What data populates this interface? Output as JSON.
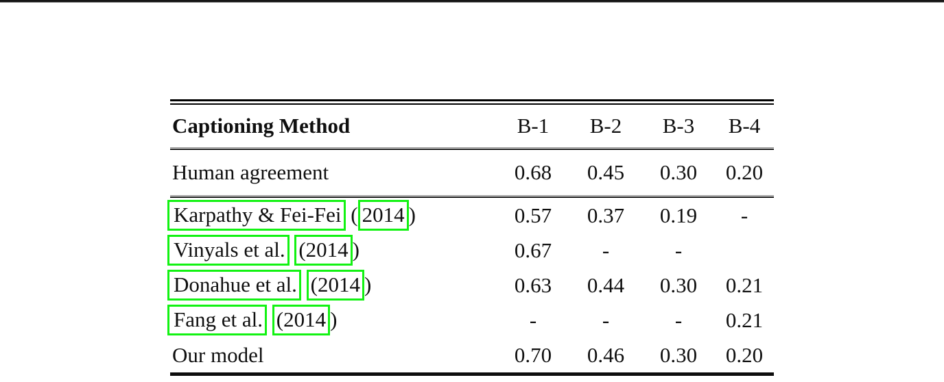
{
  "colors": {
    "link_box_green": "#12f212",
    "text": "#0f0f0f",
    "rule": "#000000"
  },
  "table": {
    "header": {
      "method_label": "Captioning Method",
      "columns": [
        "B-1",
        "B-2",
        "B-3",
        "B-4"
      ]
    },
    "rows": [
      {
        "type": "plain",
        "method": "Human agreement",
        "values": [
          "0.68",
          "0.45",
          "0.30",
          "0.20"
        ]
      },
      {
        "type": "linked",
        "author": "Karpathy & Fei-Fei",
        "pre_year": " (",
        "year": "2014",
        "post_year": ")",
        "values": [
          "0.57",
          "0.37",
          "0.19",
          "-"
        ]
      },
      {
        "type": "linked",
        "author": "Vinyals et al.",
        "pre_year": " ",
        "year": "(2014",
        "post_year": ")",
        "values": [
          "0.67",
          "-",
          "-",
          ""
        ]
      },
      {
        "type": "linked",
        "author": "Donahue et al.",
        "pre_year": " ",
        "year": "(2014",
        "post_year": ")",
        "values": [
          "0.63",
          "0.44",
          "0.30",
          "0.21"
        ]
      },
      {
        "type": "linked",
        "author": "Fang et al.",
        "pre_year": " ",
        "year": "(2014",
        "post_year": ")",
        "values": [
          "-",
          "-",
          "-",
          "0.21"
        ]
      },
      {
        "type": "plain",
        "method": "Our model",
        "values": [
          "0.70",
          "0.46",
          "0.30",
          "0.20"
        ]
      }
    ]
  }
}
